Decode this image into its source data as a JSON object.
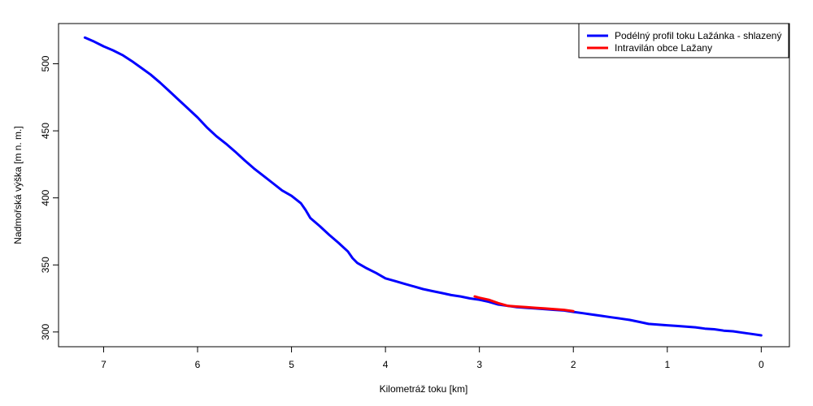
{
  "chart_data": {
    "type": "line",
    "title": "",
    "xlabel": "Kilometráž toku [km]",
    "ylabel": "Nadmořská výška [m n. m.]",
    "xlim": [
      7.48,
      -0.3
    ],
    "ylim": [
      289,
      530
    ],
    "x_ticks": [
      7,
      6,
      5,
      4,
      3,
      2,
      1,
      0
    ],
    "x_tick_labels": [
      "7",
      "6",
      "5",
      "4",
      "3",
      "2",
      "1",
      "0"
    ],
    "y_ticks": [
      300,
      350,
      400,
      450,
      500
    ],
    "y_tick_labels": [
      "300",
      "350",
      "400",
      "450",
      "500"
    ],
    "legend_position": "top-right",
    "series": [
      {
        "name": "Podélný profil toku Lažánka - shlazený",
        "color": "#0000ff",
        "x": [
          7.2,
          7.1,
          7.0,
          6.9,
          6.8,
          6.7,
          6.6,
          6.5,
          6.4,
          6.3,
          6.2,
          6.1,
          6.0,
          5.9,
          5.8,
          5.7,
          5.6,
          5.5,
          5.4,
          5.3,
          5.2,
          5.1,
          5.0,
          4.9,
          4.85,
          4.8,
          4.7,
          4.6,
          4.5,
          4.4,
          4.35,
          4.3,
          4.2,
          4.1,
          4.0,
          3.9,
          3.8,
          3.7,
          3.6,
          3.5,
          3.4,
          3.3,
          3.2,
          3.1,
          3.0,
          2.9,
          2.8,
          2.7,
          2.6,
          2.5,
          2.4,
          2.3,
          2.2,
          2.1,
          2.0,
          1.9,
          1.8,
          1.7,
          1.6,
          1.5,
          1.4,
          1.3,
          1.2,
          1.1,
          1.0,
          0.9,
          0.8,
          0.7,
          0.6,
          0.5,
          0.4,
          0.3,
          0.2,
          0.1,
          0.0
        ],
        "y": [
          519.5,
          516.5,
          513,
          510,
          506.5,
          502,
          497,
          492,
          486,
          479.5,
          473,
          466.5,
          460,
          452.5,
          446,
          440.5,
          434.5,
          428,
          422,
          416.5,
          411,
          405.5,
          401.5,
          396,
          391,
          385,
          379,
          372.5,
          366.5,
          360,
          355,
          351.5,
          347.5,
          344,
          340,
          338,
          336,
          334,
          332,
          330.5,
          329,
          327.5,
          326.5,
          325,
          324,
          322.5,
          320.5,
          319.5,
          318.5,
          318,
          317.5,
          317,
          316.5,
          316,
          315,
          314,
          313,
          312,
          311,
          310,
          309,
          307.5,
          306,
          305.5,
          305,
          304.5,
          304,
          303.5,
          302.5,
          302,
          301,
          300.5,
          299.5,
          298.5,
          297.5
        ]
      },
      {
        "name": "Intravilán obce Lažany",
        "color": "#ff0000",
        "x": [
          3.05,
          3.0,
          2.9,
          2.8,
          2.7,
          2.6,
          2.5,
          2.4,
          2.3,
          2.2,
          2.1,
          2.0
        ],
        "y": [
          326.5,
          325.5,
          324,
          321.5,
          319.5,
          319,
          318.5,
          318,
          317.5,
          317,
          316.5,
          315.5
        ]
      }
    ]
  }
}
